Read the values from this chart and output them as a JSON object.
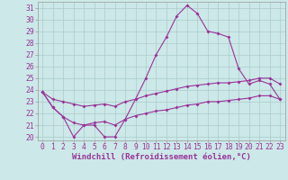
{
  "xlabel": "Windchill (Refroidissement éolien,°C)",
  "x": [
    0,
    1,
    2,
    3,
    4,
    5,
    6,
    7,
    8,
    9,
    10,
    11,
    12,
    13,
    14,
    15,
    16,
    17,
    18,
    19,
    20,
    21,
    22,
    23
  ],
  "line_main": [
    23.8,
    22.5,
    21.7,
    20.0,
    21.0,
    21.0,
    20.0,
    20.0,
    21.5,
    23.2,
    25.0,
    27.0,
    28.5,
    30.3,
    31.2,
    30.5,
    29.0,
    28.8,
    28.5,
    25.8,
    24.5,
    24.8,
    24.5,
    23.2
  ],
  "line_upper": [
    23.8,
    23.2,
    23.0,
    22.8,
    22.6,
    22.7,
    22.8,
    22.6,
    23.0,
    23.2,
    23.5,
    23.7,
    23.9,
    24.1,
    24.3,
    24.4,
    24.5,
    24.6,
    24.6,
    24.7,
    24.8,
    25.0,
    25.0,
    24.5
  ],
  "line_lower": [
    23.8,
    22.5,
    21.7,
    21.2,
    21.0,
    21.2,
    21.3,
    21.0,
    21.5,
    21.8,
    22.0,
    22.2,
    22.3,
    22.5,
    22.7,
    22.8,
    23.0,
    23.0,
    23.1,
    23.2,
    23.3,
    23.5,
    23.5,
    23.2
  ],
  "bg_color": "#cce8e8",
  "grid_color": "#aacccc",
  "line_color": "#993399",
  "ylim_min": 19.7,
  "ylim_max": 31.5,
  "yticks": [
    20,
    21,
    22,
    23,
    24,
    25,
    26,
    27,
    28,
    29,
    30,
    31
  ],
  "xticks": [
    0,
    1,
    2,
    3,
    4,
    5,
    6,
    7,
    8,
    9,
    10,
    11,
    12,
    13,
    14,
    15,
    16,
    17,
    18,
    19,
    20,
    21,
    22,
    23
  ],
  "xlabel_fontsize": 6.5,
  "tick_fontsize": 5.8,
  "lw": 0.8,
  "ms": 2.0
}
